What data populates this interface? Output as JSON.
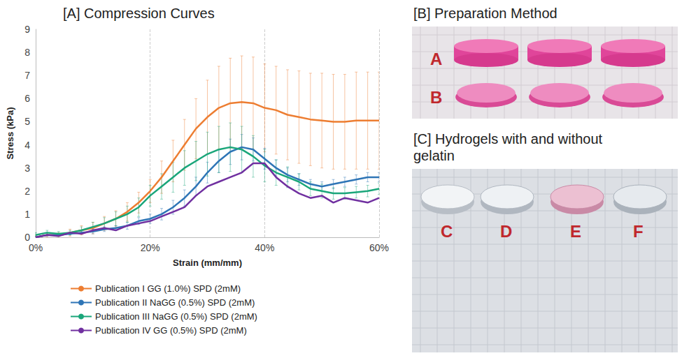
{
  "chart_data": {
    "type": "line",
    "title": "[A] Compression Curves",
    "x_label": "Strain (mm/mm)",
    "y_label": "Stress (kPa)",
    "x": [
      0,
      2,
      4,
      6,
      8,
      10,
      12,
      14,
      16,
      18,
      20,
      22,
      24,
      26,
      28,
      30,
      32,
      34,
      36,
      38,
      40,
      42,
      44,
      46,
      48,
      50,
      52,
      54,
      56,
      58,
      60
    ],
    "xlim": [
      0,
      60
    ],
    "xticks": [
      {
        "value": 0,
        "label": "0%"
      },
      {
        "value": 20,
        "label": "20%"
      },
      {
        "value": 40,
        "label": "40%"
      },
      {
        "value": 60,
        "label": "60%"
      }
    ],
    "ylim": [
      0,
      9
    ],
    "yticks": [
      0,
      1,
      2,
      3,
      4,
      5,
      6,
      7,
      8,
      9
    ],
    "grid": true,
    "legend": "bottom-left",
    "series": [
      {
        "name": "Publication I GG (1.0%) SPD (2mM)",
        "color": "#ed7d31",
        "values": [
          0,
          0.1,
          0.1,
          0.2,
          0.3,
          0.4,
          0.6,
          0.8,
          1.1,
          1.5,
          2.0,
          2.6,
          3.3,
          4.0,
          4.7,
          5.2,
          5.6,
          5.8,
          5.85,
          5.8,
          5.6,
          5.5,
          5.3,
          5.2,
          5.1,
          5.05,
          5.0,
          5.0,
          5.05,
          5.05,
          5.05
        ],
        "errors": [
          0.1,
          0.1,
          0.1,
          0.15,
          0.2,
          0.25,
          0.3,
          0.35,
          0.4,
          0.45,
          0.5,
          0.7,
          0.9,
          1.1,
          1.3,
          1.6,
          1.8,
          1.95,
          2.0,
          2.0,
          1.9,
          1.9,
          1.95,
          2.0,
          2.0,
          2.05,
          2.05,
          2.05,
          2.1,
          2.1,
          2.1
        ]
      },
      {
        "name": "Publication II NaGG (0.5%) SPD (2mM)",
        "color": "#2e75b6",
        "values": [
          0,
          0.1,
          0.1,
          0.15,
          0.2,
          0.25,
          0.35,
          0.4,
          0.5,
          0.7,
          0.8,
          1.0,
          1.3,
          1.7,
          2.2,
          2.8,
          3.3,
          3.7,
          3.9,
          3.8,
          3.4,
          3.0,
          2.7,
          2.5,
          2.3,
          2.2,
          2.3,
          2.4,
          2.5,
          2.6,
          2.6
        ],
        "errors": [
          0.05,
          0.05,
          0.05,
          0.05,
          0.05,
          0.1,
          0.1,
          0.1,
          0.15,
          0.15,
          0.2,
          0.25,
          0.3,
          0.35,
          0.4,
          0.45,
          0.5,
          0.55,
          0.55,
          0.5,
          0.45,
          0.35,
          0.3,
          0.25,
          0.2,
          0.2,
          0.2,
          0.2,
          0.2,
          0.2,
          0.2
        ]
      },
      {
        "name": "Publication III NaGG (0.5%) SPD (2mM)",
        "color": "#1aa67a",
        "values": [
          0.1,
          0.2,
          0.15,
          0.2,
          0.3,
          0.45,
          0.6,
          0.8,
          1.0,
          1.3,
          1.8,
          2.2,
          2.6,
          3.0,
          3.3,
          3.6,
          3.8,
          3.9,
          3.8,
          3.5,
          3.1,
          2.8,
          2.6,
          2.4,
          2.1,
          2.0,
          1.9,
          1.9,
          1.95,
          2.0,
          2.1
        ],
        "errors": [
          0.1,
          0.1,
          0.1,
          0.1,
          0.15,
          0.2,
          0.25,
          0.3,
          0.35,
          0.4,
          0.45,
          0.55,
          0.65,
          0.75,
          0.85,
          0.95,
          1.0,
          1.05,
          1.0,
          0.9,
          0.7,
          0.55,
          0.45,
          0.35,
          0.3,
          0.3,
          0.25,
          0.25,
          0.25,
          0.25,
          0.25
        ]
      },
      {
        "name": "Publication IV GG (0.5%) SPD (2mM)",
        "color": "#7030a0",
        "values": [
          0,
          0.1,
          0.05,
          0.2,
          0.15,
          0.3,
          0.4,
          0.3,
          0.5,
          0.6,
          0.7,
          0.9,
          1.1,
          1.3,
          1.8,
          2.2,
          2.4,
          2.6,
          2.8,
          3.2,
          3.2,
          2.6,
          2.2,
          1.9,
          1.7,
          1.8,
          1.5,
          1.7,
          1.6,
          1.5,
          1.7
        ]
      }
    ]
  },
  "photos": [
    {
      "title": "[B] Preparation Method",
      "labels": [
        "A",
        "B"
      ]
    },
    {
      "title": "[C] Hydrogels with and without gelatin",
      "labels": [
        "C",
        "D",
        "E",
        "F"
      ]
    }
  ]
}
